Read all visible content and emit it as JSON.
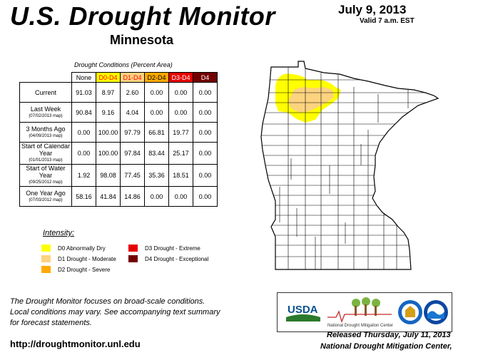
{
  "header": {
    "title": "U.S. Drought Monitor",
    "state": "Minnesota",
    "date": "July 9, 2013",
    "valid": "Valid 7 a.m. EST"
  },
  "table": {
    "caption": "Drought Conditions (Percent Area)",
    "columns": [
      "None",
      "D0-D4",
      "D1-D4",
      "D2-D4",
      "D3-D4",
      "D4"
    ],
    "column_colors": [
      "#ffffff",
      "#ffff00",
      "#fcd37f",
      "#ffaa00",
      "#e60000",
      "#730000"
    ],
    "column_text_colors": [
      "#000000",
      "#ff0000",
      "#ff0000",
      "#000000",
      "#ffffff",
      "#ffffff"
    ],
    "rows": [
      {
        "label": "Current",
        "sub": "",
        "values": [
          "91.03",
          "8.97",
          "2.60",
          "0.00",
          "0.00",
          "0.00"
        ]
      },
      {
        "label": "Last Week",
        "sub": "(07/02/2013 map)",
        "values": [
          "90.84",
          "9.16",
          "4.04",
          "0.00",
          "0.00",
          "0.00"
        ]
      },
      {
        "label": "3 Months Ago",
        "sub": "(04/09/2013 map)",
        "values": [
          "0.00",
          "100.00",
          "97.79",
          "66.81",
          "19.77",
          "0.00"
        ]
      },
      {
        "label": "Start of Calendar Year",
        "sub": "(01/01/2013 map)",
        "values": [
          "0.00",
          "100.00",
          "97.84",
          "83.44",
          "25.17",
          "0.00"
        ]
      },
      {
        "label": "Start of Water Year",
        "sub": "(09/25/2012 map)",
        "values": [
          "1.92",
          "98.08",
          "77.45",
          "35.36",
          "18.51",
          "0.00"
        ]
      },
      {
        "label": "One Year Ago",
        "sub": "(07/03/2012 map)",
        "values": [
          "58.16",
          "41.84",
          "14.86",
          "0.00",
          "0.00",
          "0.00"
        ]
      }
    ]
  },
  "legend": {
    "title": "Intensity:",
    "items": [
      {
        "label": "D0 Abnormally Dry",
        "color": "#ffff00"
      },
      {
        "label": "D1 Drought - Moderate",
        "color": "#fcd37f"
      },
      {
        "label": "D2 Drought - Severe",
        "color": "#ffaa00"
      },
      {
        "label": "D3 Drought - Extreme",
        "color": "#e60000"
      },
      {
        "label": "D4 Drought - Exceptional",
        "color": "#730000"
      }
    ]
  },
  "footer": {
    "note_lines": [
      "The Drought Monitor focuses on broad-scale conditions.",
      "Local conditions may vary. See accompanying text summary",
      "for forecast statements."
    ],
    "url": "http://droughtmonitor.unl.edu",
    "released": "Released Thursday, July 11, 2013",
    "center": "National Drought Mitigation Center,"
  },
  "logos": {
    "usda": "USDA",
    "ndmc": "National Drought Mitigation Center"
  }
}
